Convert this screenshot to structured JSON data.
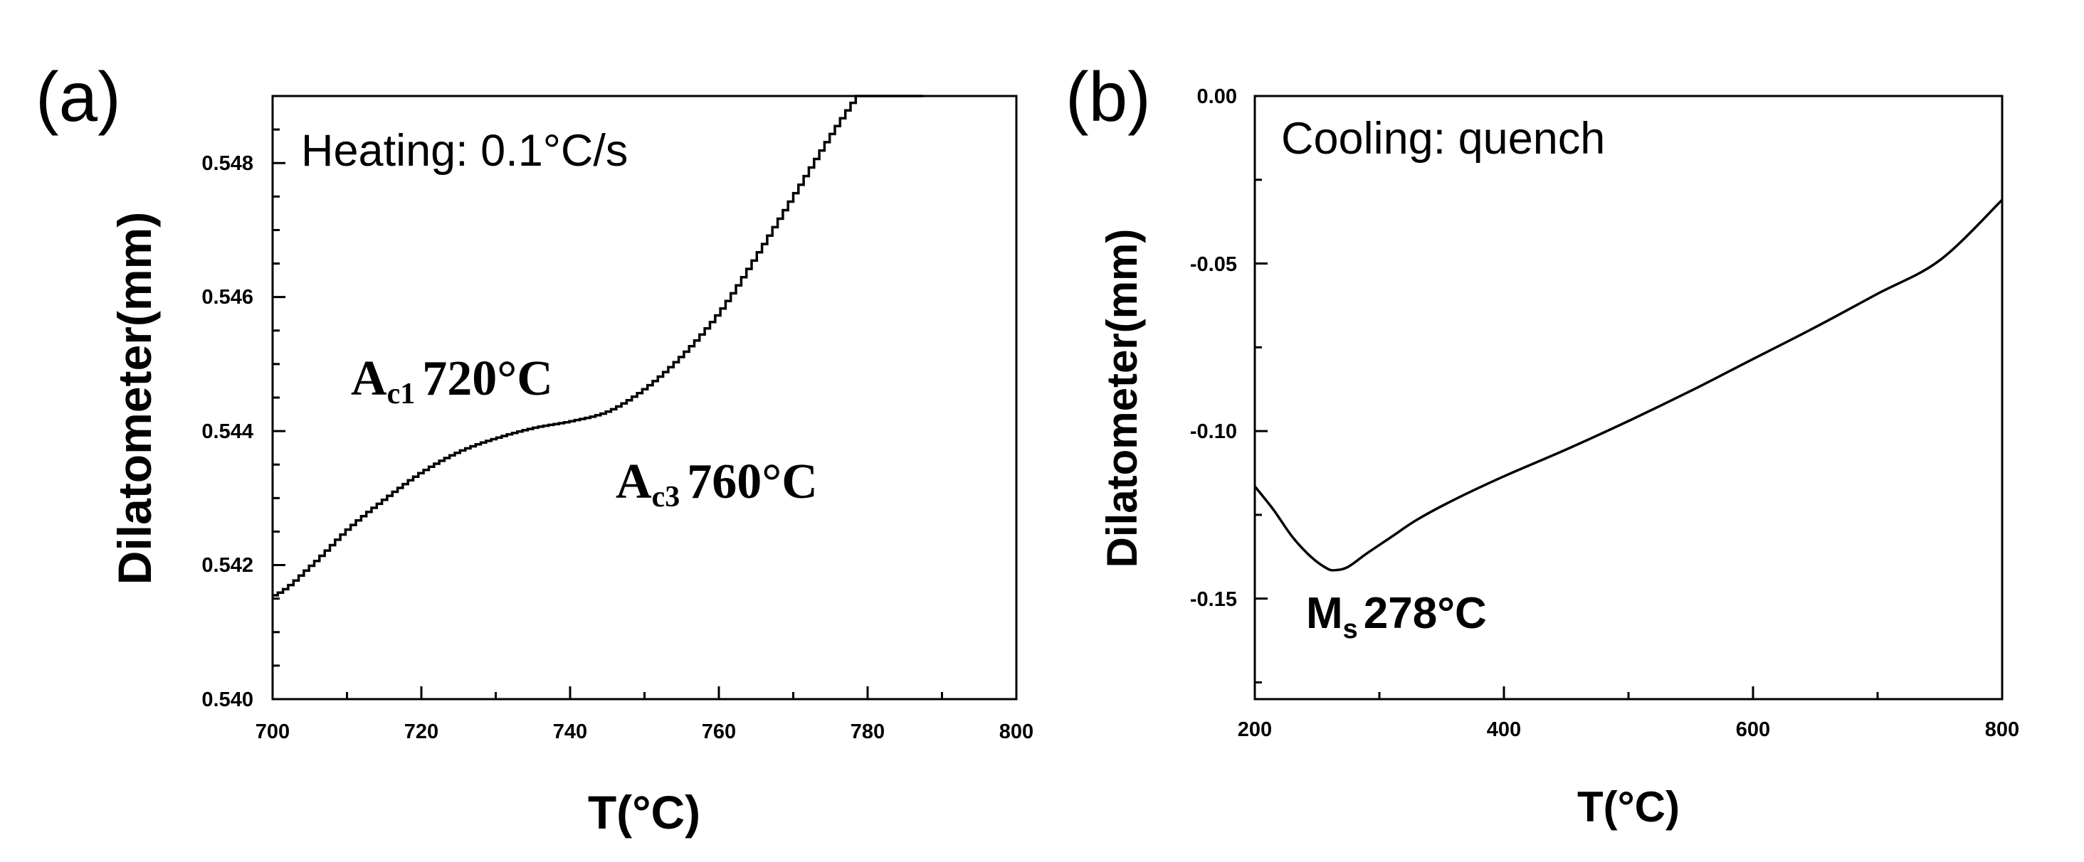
{
  "chart_data": [
    {
      "panel_label": "(a)",
      "type": "line",
      "condition": "Heating: 0.1°C/s",
      "xlabel": "T(°C)",
      "ylabel": "Dilatometer(mm)",
      "xlim": [
        700,
        800
      ],
      "ylim": [
        0.54,
        0.549
      ],
      "x_ticks": [
        "700",
        "720",
        "740",
        "760",
        "780",
        "800"
      ],
      "y_ticks": [
        "0.540",
        "0.542",
        "0.544",
        "0.546",
        "0.548"
      ],
      "grid": false,
      "series": [
        {
          "style": "stepped",
          "x": [
            700,
            705,
            710,
            715,
            720,
            725,
            730,
            735,
            740,
            745,
            750,
            755,
            760,
            765,
            770,
            775,
            780,
            785,
            788
          ],
          "y": [
            0.54155,
            0.542,
            0.54255,
            0.543,
            0.5434,
            0.5437,
            0.5439,
            0.54405,
            0.54415,
            0.5443,
            0.54465,
            0.54515,
            0.5458,
            0.54665,
            0.54755,
            0.54845,
            0.54925,
            0.5499,
            0.549
          ]
        }
      ],
      "annotations": [
        {
          "main": "A",
          "sub": "c1",
          "value": "720°C"
        },
        {
          "main": "A",
          "sub": "c3",
          "value": "760°C"
        }
      ]
    },
    {
      "panel_label": "(b)",
      "type": "line",
      "condition": "Cooling: quench",
      "xlabel": "T(°C)",
      "ylabel": "Dilatometer(mm)",
      "xlim": [
        200,
        800
      ],
      "ylim": [
        -0.18,
        0.0
      ],
      "x_ticks": [
        "200",
        "400",
        "600",
        "800"
      ],
      "y_ticks": [
        "0.00",
        "-0.05",
        "-0.10",
        "-0.15"
      ],
      "grid": false,
      "series": [
        {
          "style": "smooth",
          "x": [
            200,
            215,
            230,
            245,
            258,
            265,
            275,
            290,
            310,
            330,
            360,
            400,
            450,
            500,
            550,
            600,
            650,
            700,
            750,
            800
          ],
          "y": [
            -0.1165,
            -0.1235,
            -0.1315,
            -0.1375,
            -0.141,
            -0.1415,
            -0.1405,
            -0.1365,
            -0.1315,
            -0.1265,
            -0.1205,
            -0.1135,
            -0.1055,
            -0.097,
            -0.088,
            -0.0785,
            -0.069,
            -0.059,
            -0.049,
            -0.031
          ]
        }
      ],
      "annotations": [
        {
          "main": "M",
          "sub": "s",
          "value": "278°C"
        }
      ]
    }
  ]
}
